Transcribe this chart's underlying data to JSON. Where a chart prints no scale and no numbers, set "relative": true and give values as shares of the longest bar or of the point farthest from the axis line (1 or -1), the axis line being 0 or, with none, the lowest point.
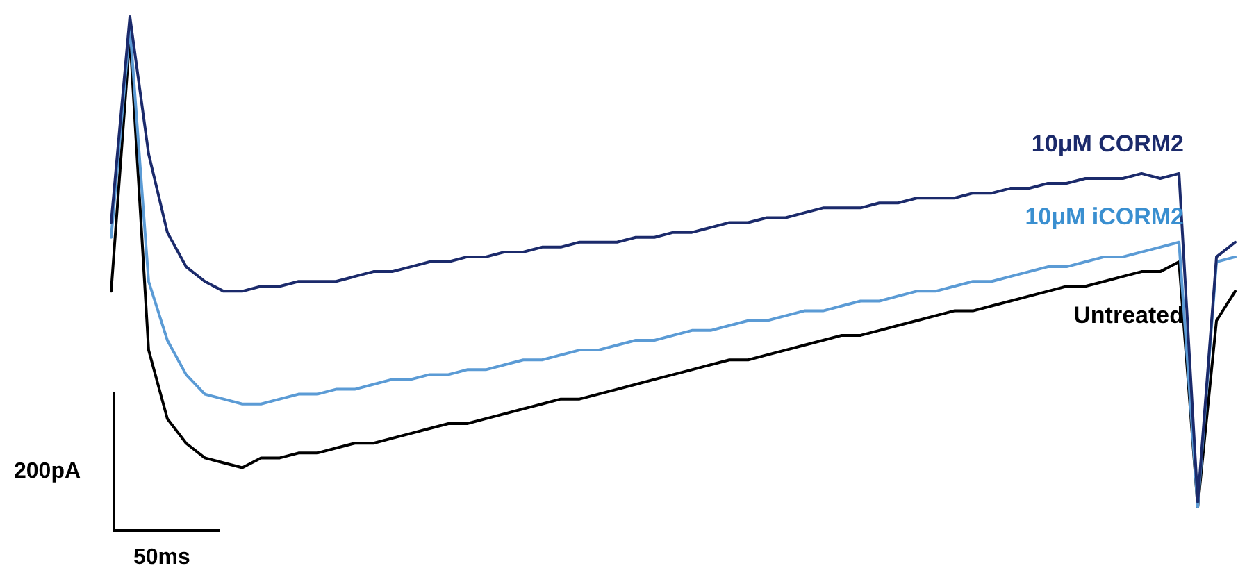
{
  "chart_data": {
    "type": "line",
    "relative": true,
    "categories": [
      null,
      null,
      null,
      null,
      null,
      null,
      null,
      null,
      null,
      null,
      null,
      null,
      null,
      null,
      null,
      null,
      null,
      null,
      null,
      null,
      null,
      null,
      null,
      null,
      null,
      null,
      null,
      null,
      null,
      null,
      null,
      null,
      null,
      null,
      null,
      null,
      null,
      null,
      null,
      null,
      null,
      null,
      null,
      null,
      null,
      null,
      null,
      null,
      null,
      null,
      null,
      null,
      null,
      null,
      null,
      null,
      null,
      null,
      null,
      null,
      null
    ],
    "series": [
      {
        "name": "10μM CORM2",
        "color": "#1b2a6b",
        "values": [
          0.58,
          1.0,
          0.72,
          0.56,
          0.49,
          0.46,
          0.44,
          0.44,
          0.45,
          0.45,
          0.46,
          0.46,
          0.46,
          0.47,
          0.48,
          0.48,
          0.49,
          0.5,
          0.5,
          0.51,
          0.51,
          0.52,
          0.52,
          0.53,
          0.53,
          0.54,
          0.54,
          0.54,
          0.55,
          0.55,
          0.56,
          0.56,
          0.57,
          0.58,
          0.58,
          0.59,
          0.59,
          0.6,
          0.61,
          0.61,
          0.61,
          0.62,
          0.62,
          0.63,
          0.63,
          0.63,
          0.64,
          0.64,
          0.65,
          0.65,
          0.66,
          0.66,
          0.67,
          0.67,
          0.67,
          0.68,
          0.67,
          0.68,
          0.01,
          0.51,
          0.54
        ]
      },
      {
        "name": "10μM iCORM2",
        "color": "#5b9bd5",
        "values": [
          0.55,
          0.98,
          0.46,
          0.34,
          0.27,
          0.23,
          0.22,
          0.21,
          0.21,
          0.22,
          0.23,
          0.23,
          0.24,
          0.24,
          0.25,
          0.26,
          0.26,
          0.27,
          0.27,
          0.28,
          0.28,
          0.29,
          0.3,
          0.3,
          0.31,
          0.32,
          0.32,
          0.33,
          0.34,
          0.34,
          0.35,
          0.36,
          0.36,
          0.37,
          0.38,
          0.38,
          0.39,
          0.4,
          0.4,
          0.41,
          0.42,
          0.42,
          0.43,
          0.44,
          0.44,
          0.45,
          0.46,
          0.46,
          0.47,
          0.48,
          0.49,
          0.49,
          0.5,
          0.51,
          0.51,
          0.52,
          0.53,
          0.54,
          0.0,
          0.5,
          0.51
        ]
      },
      {
        "name": "Untreated",
        "color": "#000000",
        "values": [
          0.44,
          0.96,
          0.32,
          0.18,
          0.13,
          0.1,
          0.09,
          0.08,
          0.1,
          0.1,
          0.11,
          0.11,
          0.12,
          0.13,
          0.13,
          0.14,
          0.15,
          0.16,
          0.17,
          0.17,
          0.18,
          0.19,
          0.2,
          0.21,
          0.22,
          0.22,
          0.23,
          0.24,
          0.25,
          0.26,
          0.27,
          0.28,
          0.29,
          0.3,
          0.3,
          0.31,
          0.32,
          0.33,
          0.34,
          0.35,
          0.35,
          0.36,
          0.37,
          0.38,
          0.39,
          0.4,
          0.4,
          0.41,
          0.42,
          0.43,
          0.44,
          0.45,
          0.45,
          0.46,
          0.47,
          0.48,
          0.48,
          0.5,
          0.0,
          0.38,
          0.44
        ]
      }
    ],
    "annotations": [
      "200pA",
      "50ms"
    ]
  }
}
